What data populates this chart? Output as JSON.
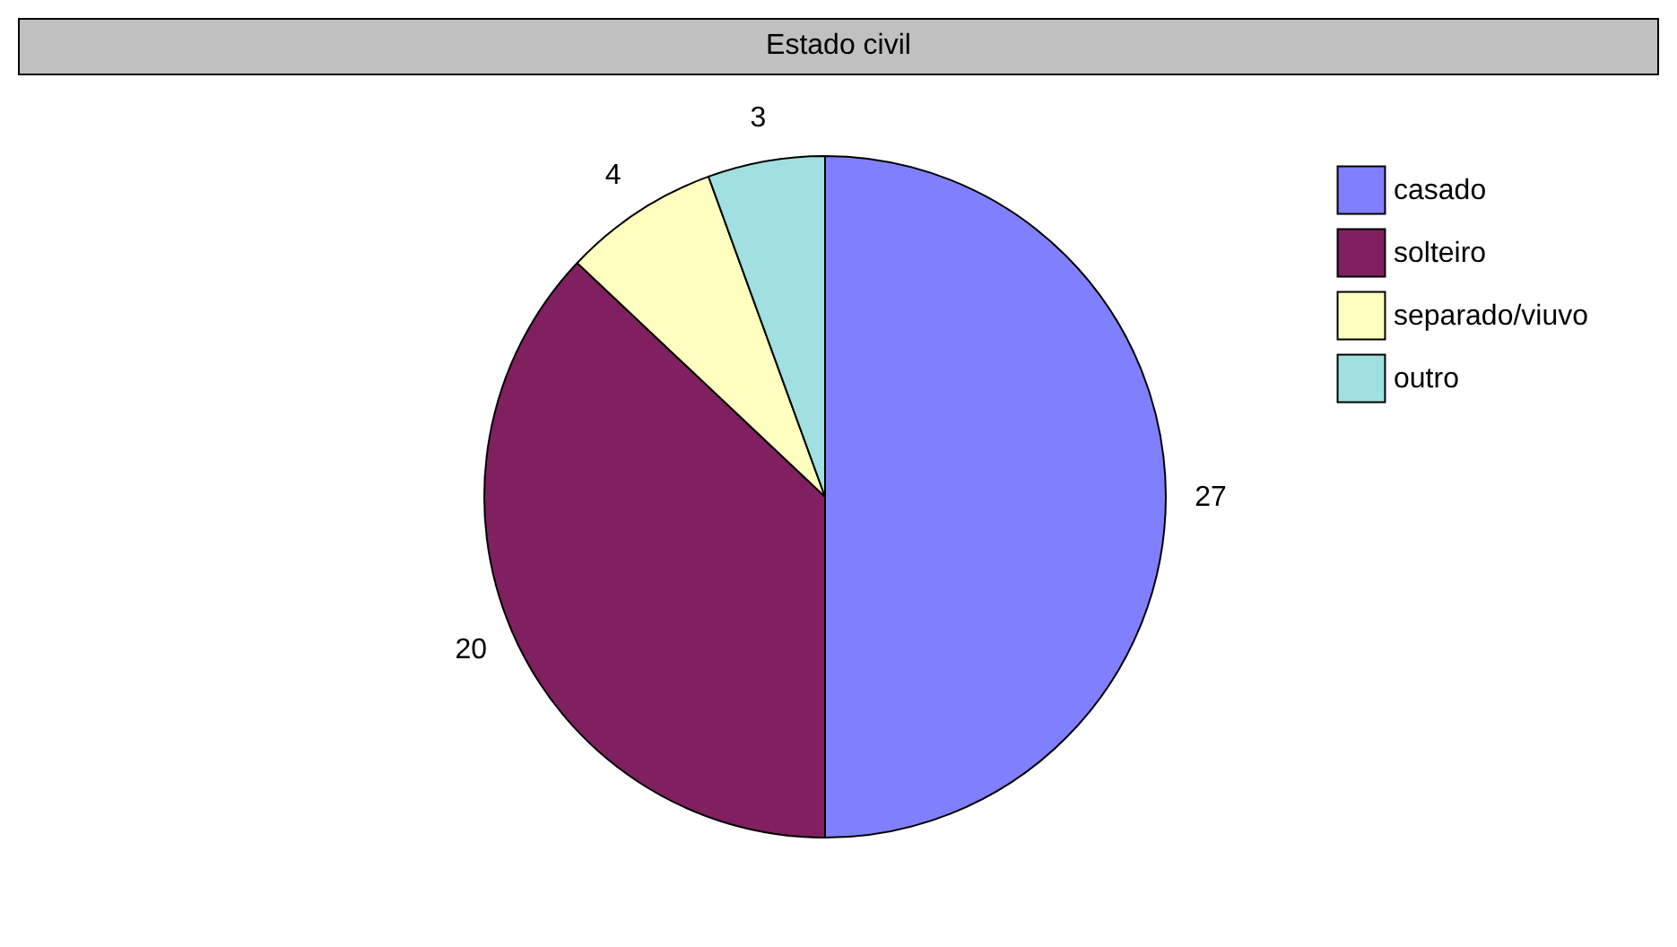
{
  "chart_data": {
    "type": "pie",
    "title": "Estado civil",
    "categories": [
      "casado",
      "solteiro",
      "separado/viuvo",
      "outro"
    ],
    "values": [
      27,
      20,
      4,
      3
    ],
    "colors": [
      "#8080ff",
      "#802060",
      "#ffffc0",
      "#a0e0e0"
    ],
    "data_labels": true,
    "legend": "top right"
  }
}
